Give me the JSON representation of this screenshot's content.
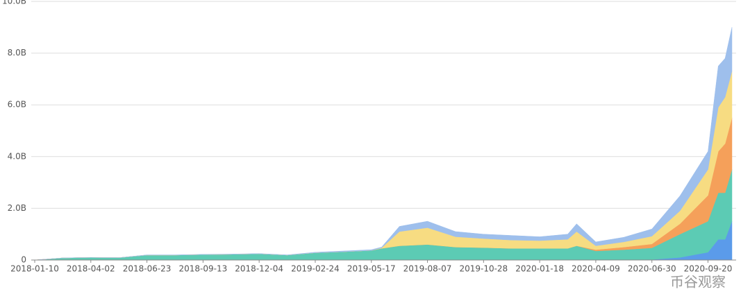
{
  "chart_data": {
    "type": "stacked_area",
    "x": [
      "2018-01-10",
      "2018-02-20",
      "2018-04-02",
      "2018-05-13",
      "2018-06-23",
      "2018-08-03",
      "2018-09-13",
      "2018-10-24",
      "2018-12-04",
      "2019-01-14",
      "2019-02-24",
      "2019-04-06",
      "2019-05-17",
      "2019-06-01",
      "2019-06-27",
      "2019-08-07",
      "2019-09-17",
      "2019-10-28",
      "2019-12-08",
      "2020-01-18",
      "2020-02-28",
      "2020-03-12",
      "2020-04-09",
      "2020-05-20",
      "2020-06-30",
      "2020-08-10",
      "2020-09-20",
      "2020-10-05",
      "2020-10-15",
      "2020-10-25"
    ],
    "series": [
      {
        "color": "#5b9bea",
        "values": [
          0,
          0,
          0,
          0,
          0,
          0,
          0,
          0,
          0,
          0,
          0,
          0,
          0,
          0,
          0,
          0,
          0,
          0,
          0,
          0,
          0,
          0,
          0,
          0,
          0.02,
          0.1,
          0.3,
          0.8,
          0.8,
          1.5
        ]
      },
      {
        "color": "#5ccbb4",
        "values": [
          0,
          0.08,
          0.1,
          0.09,
          0.19,
          0.19,
          0.21,
          0.22,
          0.24,
          0.19,
          0.28,
          0.32,
          0.37,
          0.45,
          0.55,
          0.6,
          0.5,
          0.48,
          0.45,
          0.45,
          0.45,
          0.55,
          0.35,
          0.4,
          0.45,
          0.9,
          1.2,
          1.8,
          1.8,
          2.0
        ]
      },
      {
        "color": "#f5a05a",
        "values": [
          0,
          0,
          0,
          0,
          0,
          0,
          0,
          0,
          0,
          0,
          0,
          0,
          0,
          0,
          0,
          0,
          0,
          0,
          0,
          0,
          0,
          0,
          0.05,
          0.1,
          0.15,
          0.4,
          1.0,
          1.6,
          1.9,
          2.0
        ]
      },
      {
        "color": "#f7dc82",
        "values": [
          0,
          0,
          0,
          0,
          0,
          0,
          0,
          0,
          0,
          0,
          0,
          0,
          0,
          0.02,
          0.55,
          0.65,
          0.4,
          0.35,
          0.32,
          0.3,
          0.35,
          0.55,
          0.15,
          0.2,
          0.3,
          0.5,
          1.0,
          1.7,
          1.8,
          1.8
        ]
      },
      {
        "color": "#9ebfec",
        "values": [
          0,
          0,
          0,
          0,
          0.01,
          0.01,
          0.01,
          0.01,
          0.01,
          0.01,
          0.02,
          0.03,
          0.03,
          0.03,
          0.2,
          0.25,
          0.2,
          0.17,
          0.18,
          0.15,
          0.2,
          0.3,
          0.15,
          0.18,
          0.28,
          0.58,
          0.7,
          1.6,
          1.5,
          1.7
        ]
      }
    ],
    "xlim": [
      "2018-01-10",
      "2020-10-25"
    ],
    "xticks": [
      "2018-01-10",
      "2018-04-02",
      "2018-06-23",
      "2018-09-13",
      "2018-12-04",
      "2019-02-24",
      "2019-05-17",
      "2019-08-07",
      "2019-10-28",
      "2020-01-18",
      "2020-04-09",
      "2020-06-30",
      "2020-09-20"
    ],
    "ylim": [
      0,
      10
    ],
    "yticks": [
      0,
      {
        "value": 2,
        "label": "2.0B"
      },
      {
        "value": 4,
        "label": "4.0B"
      },
      {
        "value": 6,
        "label": "6.0B"
      },
      {
        "value": 8,
        "label": "8.0B"
      },
      {
        "value": 10,
        "label": "10.0B"
      }
    ],
    "grid": true,
    "watermark": "币谷观察"
  }
}
